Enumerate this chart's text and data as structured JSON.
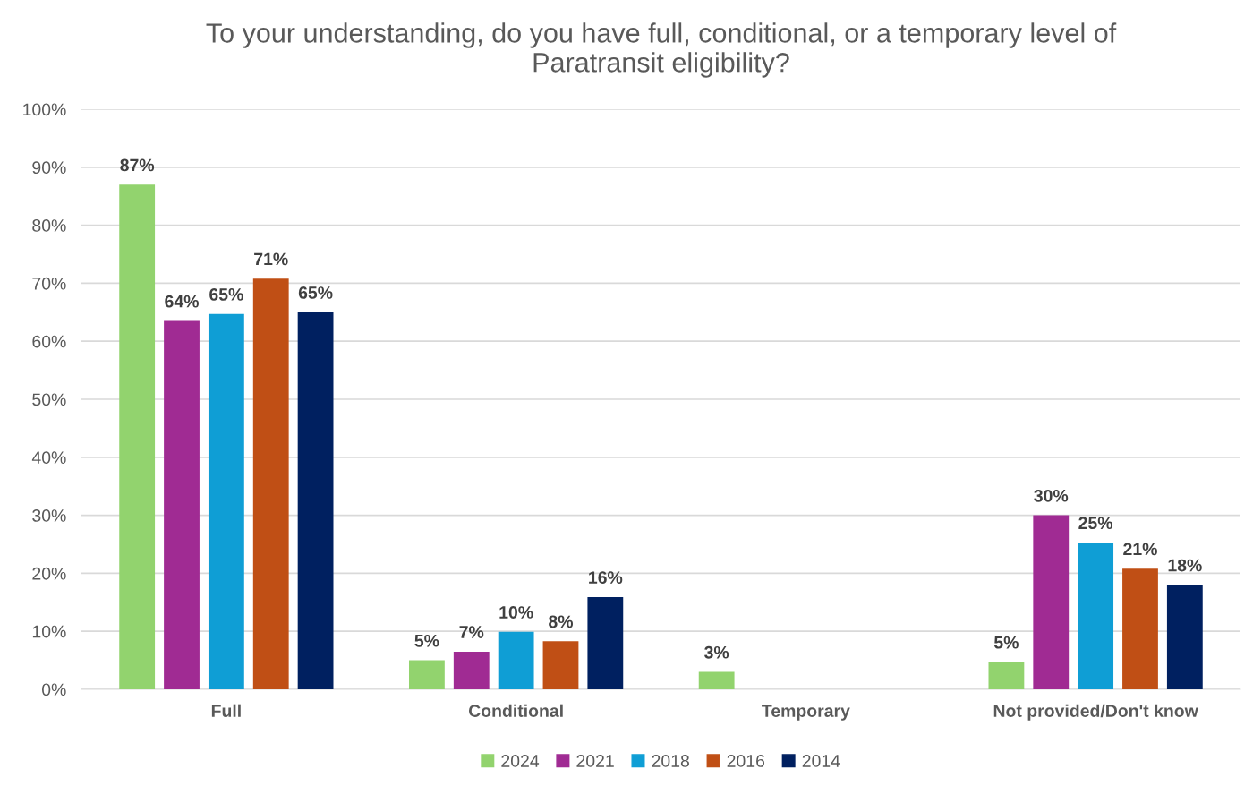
{
  "chart_data": {
    "type": "bar",
    "title": "To your understanding, do you have full, conditional, or a temporary level of\nParatransit eligibility?",
    "categories": [
      "Full",
      "Conditional",
      "Temporary",
      "Not provided/Don't know"
    ],
    "series": [
      {
        "name": "2024",
        "color": "#92d36e",
        "values": [
          87,
          5,
          3,
          4.7
        ],
        "value_labels": [
          "87%",
          "5%",
          "3%",
          "5%"
        ]
      },
      {
        "name": "2021",
        "color": "#a02b93",
        "values": [
          63.5,
          6.5,
          null,
          30
        ],
        "value_labels": [
          "64%",
          "7%",
          null,
          "30%"
        ]
      },
      {
        "name": "2018",
        "color": "#0f9ed5",
        "values": [
          64.7,
          9.9,
          null,
          25.3
        ],
        "value_labels": [
          "65%",
          "10%",
          null,
          "25%"
        ]
      },
      {
        "name": "2016",
        "color": "#c04f15",
        "values": [
          70.8,
          8.3,
          null,
          20.8
        ],
        "value_labels": [
          "71%",
          "8%",
          null,
          "21%"
        ]
      },
      {
        "name": "2014",
        "color": "#002060",
        "values": [
          65,
          15.9,
          null,
          18
        ],
        "value_labels": [
          "65%",
          "16%",
          null,
          "18%"
        ]
      }
    ],
    "ylim": [
      0,
      100
    ],
    "yticks": [
      {
        "value": 0,
        "label": "0%"
      },
      {
        "value": 10,
        "label": "10%"
      },
      {
        "value": 20,
        "label": "20%"
      },
      {
        "value": 30,
        "label": "30%"
      },
      {
        "value": 40,
        "label": "40%"
      },
      {
        "value": 50,
        "label": "50%"
      },
      {
        "value": 60,
        "label": "60%"
      },
      {
        "value": 70,
        "label": "70%"
      },
      {
        "value": 80,
        "label": "80%"
      },
      {
        "value": 90,
        "label": "90%"
      },
      {
        "value": 100,
        "label": "100%"
      }
    ],
    "grid": "y",
    "legend": "bottom"
  }
}
